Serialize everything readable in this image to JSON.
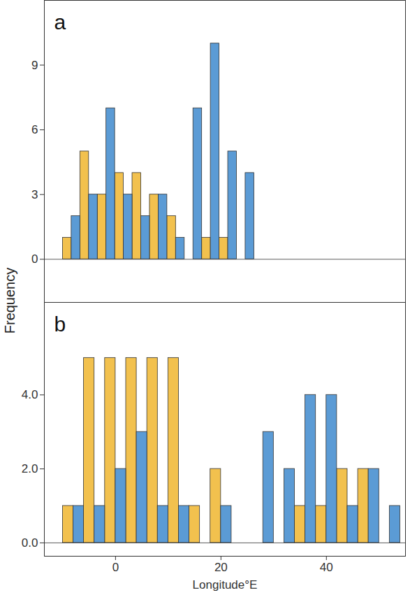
{
  "chart_data": [
    {
      "type": "histogram",
      "title": "a",
      "y_label": "Frequency",
      "bins": [
        -10,
        -6.7,
        -3.4,
        -0.1,
        3.2,
        6.5,
        9.8,
        13.1,
        16.4,
        19.7,
        23,
        26.3
      ],
      "series": [
        {
          "color": "#F2C14E",
          "values": [
            1,
            5,
            3,
            4,
            4,
            3,
            2,
            0,
            1,
            1,
            0
          ]
        },
        {
          "color": "#5B9BD5",
          "values": [
            2,
            3,
            7,
            3,
            2,
            3,
            1,
            7,
            10,
            5,
            4
          ]
        }
      ],
      "xlim": [
        -13.5,
        55
      ],
      "ylim": [
        -2,
        12
      ],
      "yticks": [
        0,
        3,
        6,
        9
      ],
      "tick_labels": "y",
      "grid": false
    },
    {
      "type": "histogram",
      "title": "b",
      "x_label": "Longitude°E",
      "bins": [
        -10,
        -6,
        -2,
        2,
        6,
        10,
        14,
        18,
        22,
        26,
        30,
        34,
        38,
        42,
        46,
        50,
        54
      ],
      "series": [
        {
          "color": "#F2C14E",
          "values": [
            1,
            5,
            5,
            5,
            5,
            5,
            1,
            2,
            0,
            0,
            0,
            1,
            1,
            2,
            2,
            0
          ]
        },
        {
          "color": "#5B9BD5",
          "values": [
            1,
            1,
            2,
            3,
            1,
            1,
            0,
            1,
            0,
            3,
            2,
            4,
            4,
            1,
            2,
            1
          ]
        }
      ],
      "xlim": [
        -13.5,
        55
      ],
      "ylim": [
        -0.36,
        6.5
      ],
      "xticks": [
        0,
        20,
        40
      ],
      "yticks": [
        0,
        2,
        4
      ],
      "grid": false
    }
  ]
}
